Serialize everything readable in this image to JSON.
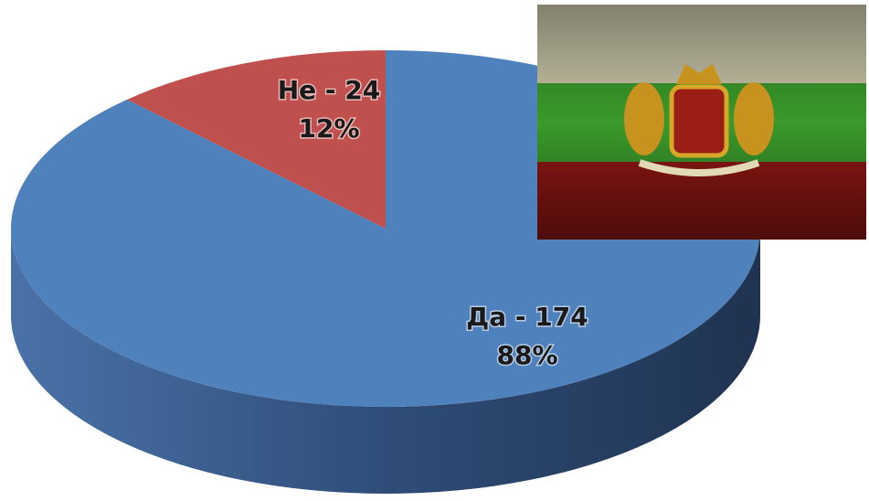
{
  "chart_data": {
    "type": "pie",
    "values": [
      174,
      24
    ],
    "value_labels": [
      "Да - 174",
      "Не - 24"
    ],
    "percents": [
      88,
      12
    ],
    "percent_labels": [
      "88%",
      "12%"
    ],
    "colors": [
      "#4f81bd",
      "#c0504d"
    ]
  }
}
